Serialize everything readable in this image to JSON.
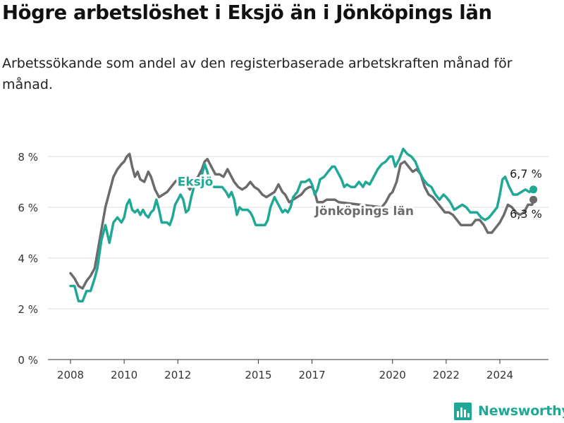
{
  "title": "Högre arbetslöshet i Eksjö än i Jönköpings län",
  "subtitle": "Arbetssökande som andel av den registerbaserade arbetskraften månad för månad.",
  "brand": {
    "name": "Newsworthy",
    "color": "#1fa896"
  },
  "chart_data": {
    "type": "line",
    "y_unit": "%",
    "ylim": [
      0,
      8.4
    ],
    "xlim": [
      2007.5,
      2025.8
    ],
    "grid": "horizontal",
    "y_ticks": [
      {
        "value": 0,
        "label": "0 %"
      },
      {
        "value": 2,
        "label": "2 %"
      },
      {
        "value": 4,
        "label": "4 %"
      },
      {
        "value": 6,
        "label": "6 %"
      },
      {
        "value": 8,
        "label": "8 %"
      }
    ],
    "x_ticks": [
      {
        "value": 2008,
        "label": "2008"
      },
      {
        "value": 2010,
        "label": "2010"
      },
      {
        "value": 2012,
        "label": "2012"
      },
      {
        "value": 2015,
        "label": "2015"
      },
      {
        "value": 2017,
        "label": "2017"
      },
      {
        "value": 2020,
        "label": "2020"
      },
      {
        "value": 2022,
        "label": "2022"
      },
      {
        "value": 2024,
        "label": "2024"
      }
    ],
    "series": [
      {
        "name": "Eksjö",
        "color": "#1fa896",
        "label_position": [
          2012.65,
          6.85
        ],
        "end_label": "6,7 %",
        "points": [
          [
            2008.0,
            2.9
          ],
          [
            2008.15,
            2.9
          ],
          [
            2008.3,
            2.3
          ],
          [
            2008.45,
            2.3
          ],
          [
            2008.6,
            2.7
          ],
          [
            2008.75,
            2.7
          ],
          [
            2008.9,
            3.2
          ],
          [
            2009.0,
            3.6
          ],
          [
            2009.15,
            4.7
          ],
          [
            2009.3,
            5.3
          ],
          [
            2009.45,
            4.6
          ],
          [
            2009.6,
            5.4
          ],
          [
            2009.75,
            5.6
          ],
          [
            2009.9,
            5.4
          ],
          [
            2010.0,
            5.6
          ],
          [
            2010.1,
            6.1
          ],
          [
            2010.2,
            6.3
          ],
          [
            2010.3,
            5.9
          ],
          [
            2010.4,
            5.8
          ],
          [
            2010.5,
            5.9
          ],
          [
            2010.6,
            5.7
          ],
          [
            2010.7,
            5.9
          ],
          [
            2010.8,
            5.7
          ],
          [
            2010.9,
            5.6
          ],
          [
            2011.0,
            5.8
          ],
          [
            2011.1,
            5.9
          ],
          [
            2011.2,
            6.3
          ],
          [
            2011.3,
            5.9
          ],
          [
            2011.4,
            5.4
          ],
          [
            2011.5,
            5.4
          ],
          [
            2011.6,
            5.4
          ],
          [
            2011.7,
            5.3
          ],
          [
            2011.8,
            5.6
          ],
          [
            2011.9,
            6.1
          ],
          [
            2012.0,
            6.3
          ],
          [
            2012.1,
            6.5
          ],
          [
            2012.2,
            6.3
          ],
          [
            2012.3,
            5.8
          ],
          [
            2012.4,
            5.9
          ],
          [
            2012.5,
            6.4
          ],
          [
            2012.6,
            6.8
          ],
          [
            2012.75,
            7.0
          ],
          [
            2012.9,
            7.3
          ],
          [
            2013.0,
            7.7
          ],
          [
            2013.1,
            7.4
          ],
          [
            2013.2,
            7.0
          ],
          [
            2013.35,
            6.8
          ],
          [
            2013.5,
            6.8
          ],
          [
            2013.65,
            6.8
          ],
          [
            2013.8,
            6.6
          ],
          [
            2013.9,
            6.4
          ],
          [
            2014.0,
            6.6
          ],
          [
            2014.1,
            6.3
          ],
          [
            2014.2,
            5.7
          ],
          [
            2014.3,
            6.0
          ],
          [
            2014.4,
            5.9
          ],
          [
            2014.6,
            5.9
          ],
          [
            2014.7,
            5.8
          ],
          [
            2014.8,
            5.6
          ],
          [
            2014.9,
            5.3
          ],
          [
            2015.1,
            5.3
          ],
          [
            2015.25,
            5.3
          ],
          [
            2015.35,
            5.5
          ],
          [
            2015.45,
            6.0
          ],
          [
            2015.6,
            6.4
          ],
          [
            2015.75,
            6.1
          ],
          [
            2015.9,
            5.8
          ],
          [
            2016.0,
            5.9
          ],
          [
            2016.1,
            5.8
          ],
          [
            2016.2,
            6.0
          ],
          [
            2016.3,
            6.4
          ],
          [
            2016.45,
            6.6
          ],
          [
            2016.6,
            7.0
          ],
          [
            2016.75,
            7.0
          ],
          [
            2016.9,
            7.1
          ],
          [
            2017.0,
            6.9
          ],
          [
            2017.1,
            6.5
          ],
          [
            2017.2,
            6.7
          ],
          [
            2017.3,
            7.1
          ],
          [
            2017.45,
            7.2
          ],
          [
            2017.6,
            7.4
          ],
          [
            2017.75,
            7.6
          ],
          [
            2017.85,
            7.6
          ],
          [
            2017.95,
            7.4
          ],
          [
            2018.1,
            7.1
          ],
          [
            2018.2,
            6.8
          ],
          [
            2018.3,
            6.9
          ],
          [
            2018.45,
            6.8
          ],
          [
            2018.6,
            6.8
          ],
          [
            2018.75,
            7.0
          ],
          [
            2018.9,
            6.8
          ],
          [
            2019.0,
            7.0
          ],
          [
            2019.15,
            6.9
          ],
          [
            2019.3,
            7.2
          ],
          [
            2019.45,
            7.5
          ],
          [
            2019.6,
            7.7
          ],
          [
            2019.75,
            7.8
          ],
          [
            2019.9,
            8.0
          ],
          [
            2020.0,
            8.0
          ],
          [
            2020.1,
            7.6
          ],
          [
            2020.25,
            7.9
          ],
          [
            2020.4,
            8.3
          ],
          [
            2020.55,
            8.1
          ],
          [
            2020.7,
            8.0
          ],
          [
            2020.85,
            7.8
          ],
          [
            2021.0,
            7.4
          ],
          [
            2021.15,
            7.1
          ],
          [
            2021.3,
            6.9
          ],
          [
            2021.45,
            6.8
          ],
          [
            2021.6,
            6.5
          ],
          [
            2021.75,
            6.3
          ],
          [
            2021.9,
            6.5
          ],
          [
            2022.0,
            6.4
          ],
          [
            2022.15,
            6.2
          ],
          [
            2022.3,
            5.9
          ],
          [
            2022.45,
            6.0
          ],
          [
            2022.6,
            6.1
          ],
          [
            2022.75,
            6.0
          ],
          [
            2022.9,
            5.8
          ],
          [
            2023.0,
            5.8
          ],
          [
            2023.15,
            5.8
          ],
          [
            2023.3,
            5.6
          ],
          [
            2023.45,
            5.5
          ],
          [
            2023.6,
            5.6
          ],
          [
            2023.75,
            5.8
          ],
          [
            2023.9,
            6.0
          ],
          [
            2024.0,
            6.5
          ],
          [
            2024.1,
            7.1
          ],
          [
            2024.2,
            7.2
          ],
          [
            2024.35,
            6.8
          ],
          [
            2024.5,
            6.5
          ],
          [
            2024.65,
            6.5
          ],
          [
            2024.8,
            6.6
          ],
          [
            2024.95,
            6.7
          ],
          [
            2025.1,
            6.6
          ],
          [
            2025.25,
            6.7
          ]
        ]
      },
      {
        "name": "Jönköpings län",
        "color": "#6b6b6e",
        "label_position": [
          2018.95,
          5.7
        ],
        "end_label": "6,3 %",
        "points": [
          [
            2008.0,
            3.4
          ],
          [
            2008.15,
            3.2
          ],
          [
            2008.3,
            2.9
          ],
          [
            2008.45,
            2.8
          ],
          [
            2008.6,
            3.1
          ],
          [
            2008.75,
            3.3
          ],
          [
            2008.9,
            3.6
          ],
          [
            2009.0,
            4.2
          ],
          [
            2009.15,
            5.1
          ],
          [
            2009.3,
            6.0
          ],
          [
            2009.45,
            6.6
          ],
          [
            2009.6,
            7.2
          ],
          [
            2009.75,
            7.5
          ],
          [
            2009.9,
            7.7
          ],
          [
            2010.0,
            7.8
          ],
          [
            2010.1,
            8.0
          ],
          [
            2010.2,
            8.1
          ],
          [
            2010.3,
            7.6
          ],
          [
            2010.4,
            7.2
          ],
          [
            2010.5,
            7.4
          ],
          [
            2010.6,
            7.1
          ],
          [
            2010.75,
            7.0
          ],
          [
            2010.9,
            7.4
          ],
          [
            2011.0,
            7.2
          ],
          [
            2011.15,
            6.7
          ],
          [
            2011.3,
            6.4
          ],
          [
            2011.45,
            6.5
          ],
          [
            2011.6,
            6.6
          ],
          [
            2011.75,
            6.8
          ],
          [
            2011.9,
            7.0
          ],
          [
            2012.0,
            7.1
          ],
          [
            2012.15,
            7.2
          ],
          [
            2012.3,
            6.9
          ],
          [
            2012.45,
            6.7
          ],
          [
            2012.6,
            7.0
          ],
          [
            2012.75,
            7.2
          ],
          [
            2012.9,
            7.5
          ],
          [
            2013.0,
            7.8
          ],
          [
            2013.1,
            7.9
          ],
          [
            2013.25,
            7.6
          ],
          [
            2013.4,
            7.3
          ],
          [
            2013.55,
            7.3
          ],
          [
            2013.7,
            7.2
          ],
          [
            2013.85,
            7.5
          ],
          [
            2013.95,
            7.3
          ],
          [
            2014.1,
            7.0
          ],
          [
            2014.25,
            6.8
          ],
          [
            2014.4,
            6.7
          ],
          [
            2014.55,
            6.8
          ],
          [
            2014.7,
            7.0
          ],
          [
            2014.85,
            6.8
          ],
          [
            2015.0,
            6.7
          ],
          [
            2015.15,
            6.5
          ],
          [
            2015.3,
            6.4
          ],
          [
            2015.45,
            6.5
          ],
          [
            2015.6,
            6.6
          ],
          [
            2015.75,
            6.9
          ],
          [
            2015.9,
            6.6
          ],
          [
            2016.0,
            6.5
          ],
          [
            2016.15,
            6.2
          ],
          [
            2016.3,
            6.3
          ],
          [
            2016.45,
            6.4
          ],
          [
            2016.6,
            6.5
          ],
          [
            2016.75,
            6.7
          ],
          [
            2016.9,
            6.8
          ],
          [
            2017.0,
            6.8
          ],
          [
            2017.1,
            6.6
          ],
          [
            2017.2,
            6.2
          ],
          [
            2017.4,
            6.2
          ],
          [
            2017.55,
            6.3
          ],
          [
            2017.7,
            6.3
          ],
          [
            2017.85,
            6.3
          ],
          [
            2018.0,
            6.2
          ],
          [
            2019.6,
            6.0
          ],
          [
            2019.75,
            6.2
          ],
          [
            2019.9,
            6.5
          ],
          [
            2020.0,
            6.6
          ],
          [
            2020.15,
            7.0
          ],
          [
            2020.3,
            7.7
          ],
          [
            2020.45,
            7.8
          ],
          [
            2020.6,
            7.6
          ],
          [
            2020.75,
            7.4
          ],
          [
            2020.9,
            7.5
          ],
          [
            2021.05,
            7.3
          ],
          [
            2021.2,
            6.8
          ],
          [
            2021.35,
            6.5
          ],
          [
            2021.5,
            6.4
          ],
          [
            2021.65,
            6.2
          ],
          [
            2021.8,
            6.0
          ],
          [
            2021.95,
            5.8
          ],
          [
            2022.1,
            5.8
          ],
          [
            2022.25,
            5.7
          ],
          [
            2022.4,
            5.5
          ],
          [
            2022.55,
            5.3
          ],
          [
            2022.75,
            5.3
          ],
          [
            2022.95,
            5.3
          ],
          [
            2023.1,
            5.5
          ],
          [
            2023.25,
            5.5
          ],
          [
            2023.4,
            5.3
          ],
          [
            2023.55,
            5.0
          ],
          [
            2023.7,
            5.0
          ],
          [
            2023.85,
            5.2
          ],
          [
            2024.0,
            5.4
          ],
          [
            2024.15,
            5.7
          ],
          [
            2024.3,
            6.1
          ],
          [
            2024.45,
            6.0
          ],
          [
            2024.6,
            5.8
          ],
          [
            2024.75,
            5.7
          ],
          [
            2024.9,
            5.8
          ],
          [
            2025.05,
            6.1
          ],
          [
            2025.2,
            6.1
          ],
          [
            2025.25,
            6.3
          ]
        ]
      }
    ]
  }
}
